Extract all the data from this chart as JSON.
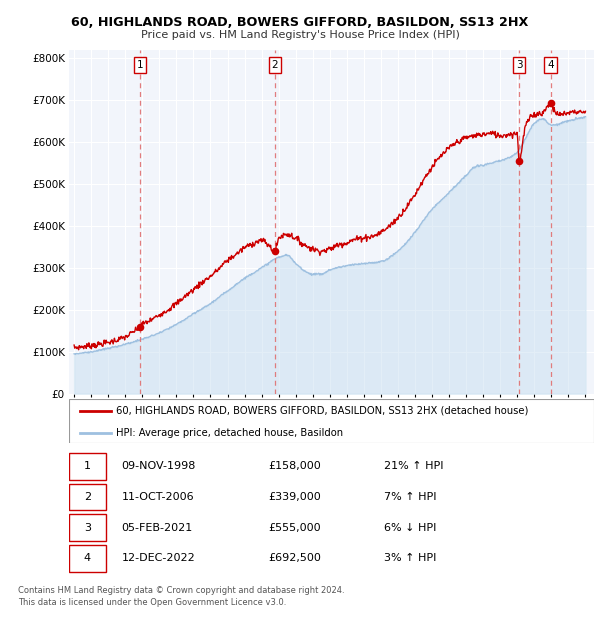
{
  "title_line1": "60, HIGHLANDS ROAD, BOWERS GIFFORD, BASILDON, SS13 2HX",
  "title_line2": "Price paid vs. HM Land Registry's House Price Index (HPI)",
  "ylim": [
    0,
    820000
  ],
  "yticks": [
    0,
    100000,
    200000,
    300000,
    400000,
    500000,
    600000,
    700000,
    800000
  ],
  "xlim_start": 1994.7,
  "xlim_end": 2025.5,
  "xticks": [
    1995,
    1996,
    1997,
    1998,
    1999,
    2000,
    2001,
    2002,
    2003,
    2004,
    2005,
    2006,
    2007,
    2008,
    2009,
    2010,
    2011,
    2012,
    2013,
    2014,
    2015,
    2016,
    2017,
    2018,
    2019,
    2020,
    2021,
    2022,
    2023,
    2024,
    2025
  ],
  "hpi_color": "#9ec0e0",
  "hpi_fill_color": "#c8dff0",
  "price_color": "#cc0000",
  "vline_color": "#e07070",
  "plot_bg_color": "#f2f5fb",
  "grid_color": "#ffffff",
  "legend_label_price": "60, HIGHLANDS ROAD, BOWERS GIFFORD, BASILDON, SS13 2HX (detached house)",
  "legend_label_hpi": "HPI: Average price, detached house, Basildon",
  "transactions": [
    {
      "num": 1,
      "date": "09-NOV-1998",
      "year": 1998.87,
      "price": 158000,
      "hpi_pct": "21%",
      "hpi_dir": "↑"
    },
    {
      "num": 2,
      "date": "11-OCT-2006",
      "year": 2006.78,
      "price": 339000,
      "hpi_pct": "7%",
      "hpi_dir": "↑"
    },
    {
      "num": 3,
      "date": "05-FEB-2021",
      "year": 2021.1,
      "price": 555000,
      "hpi_pct": "6%",
      "hpi_dir": "↓"
    },
    {
      "num": 4,
      "date": "12-DEC-2022",
      "year": 2022.95,
      "price": 692500,
      "hpi_pct": "3%",
      "hpi_dir": "↑"
    }
  ],
  "footer": "Contains HM Land Registry data © Crown copyright and database right 2024.\nThis data is licensed under the Open Government Licence v3.0."
}
